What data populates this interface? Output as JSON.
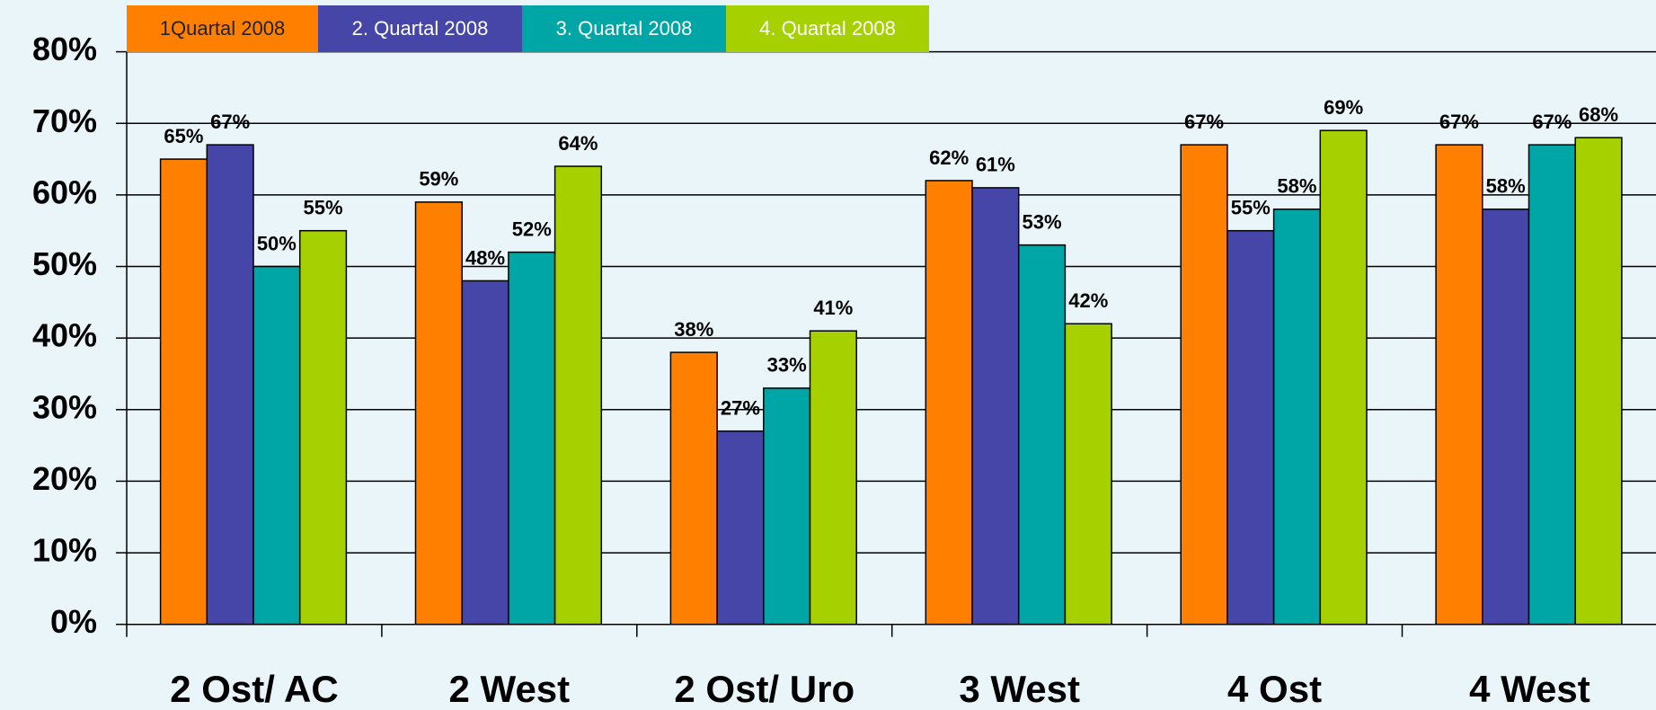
{
  "chart_data": {
    "type": "bar",
    "categories": [
      "2 Ost/ AC",
      "2 West",
      "2 Ost/ Uro",
      "3 West",
      "4 Ost",
      "4 West"
    ],
    "series": [
      {
        "name": "1Quartal 2008",
        "color": "#ff7f00",
        "values": [
          65,
          59,
          38,
          62,
          67,
          67
        ],
        "value_labels": [
          "65%",
          "59%",
          "38%",
          "62%",
          "67%",
          "67%"
        ]
      },
      {
        "name": "2. Quartal 2008",
        "color": "#4646a8",
        "values": [
          67,
          48,
          27,
          61,
          55,
          58
        ],
        "value_labels": [
          "67%",
          "48%",
          "27%",
          "61%",
          "55%",
          "58%"
        ]
      },
      {
        "name": "3. Quartal 2008",
        "color": "#00a6a6",
        "values": [
          50,
          52,
          33,
          53,
          58,
          67
        ],
        "value_labels": [
          "50%",
          "52%",
          "33%",
          "53%",
          "58%",
          "67%"
        ]
      },
      {
        "name": "4. Quartal 2008",
        "color": "#a6d000",
        "values": [
          55,
          64,
          41,
          42,
          69,
          68
        ],
        "value_labels": [
          "55%",
          "64%",
          "41%",
          "42%",
          "69%",
          "68%"
        ]
      }
    ],
    "ylim": [
      0,
      80
    ],
    "yticks": [
      {
        "value": 0,
        "label": "0%"
      },
      {
        "value": 10,
        "label": "10%"
      },
      {
        "value": 20,
        "label": "20%"
      },
      {
        "value": 30,
        "label": "30%"
      },
      {
        "value": 40,
        "label": "40%"
      },
      {
        "value": 50,
        "label": "50%"
      },
      {
        "value": 60,
        "label": "60%"
      },
      {
        "value": 70,
        "label": "70%"
      },
      {
        "value": 80,
        "label": "80%"
      }
    ],
    "grid": true,
    "legend": "top"
  }
}
